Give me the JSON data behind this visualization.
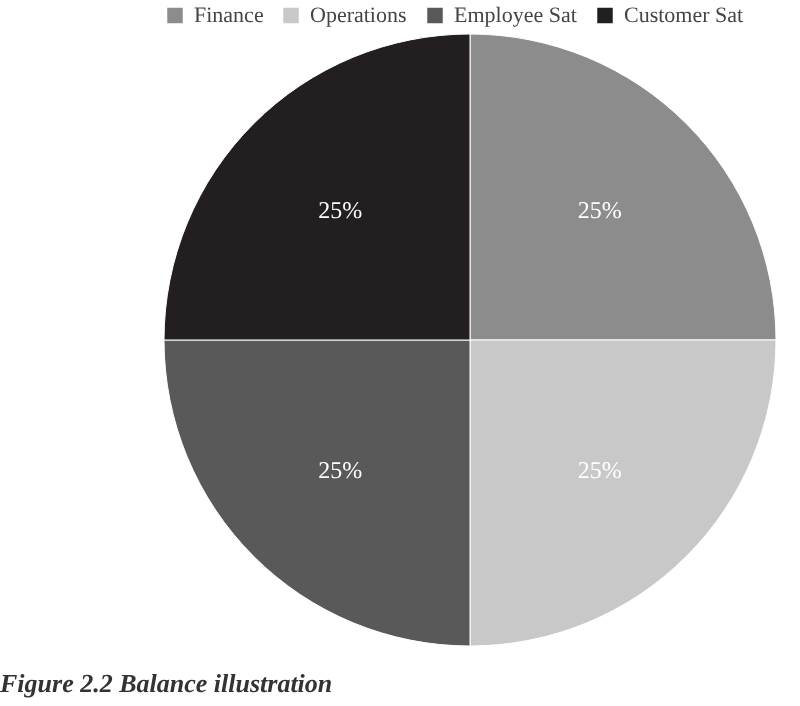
{
  "chart_data": {
    "type": "pie",
    "categories": [
      "Finance",
      "Operations",
      "Employee Sat",
      "Customer Sat"
    ],
    "values": [
      25,
      25,
      25,
      25
    ],
    "colors": [
      "#8c8c8c",
      "#c8c8c8",
      "#595959",
      "#231f20"
    ],
    "value_labels": [
      "25%",
      "25%",
      "25%",
      "25%"
    ],
    "legend": "top",
    "annotations": [
      "Figure 2.2  Balance illustration"
    ]
  }
}
